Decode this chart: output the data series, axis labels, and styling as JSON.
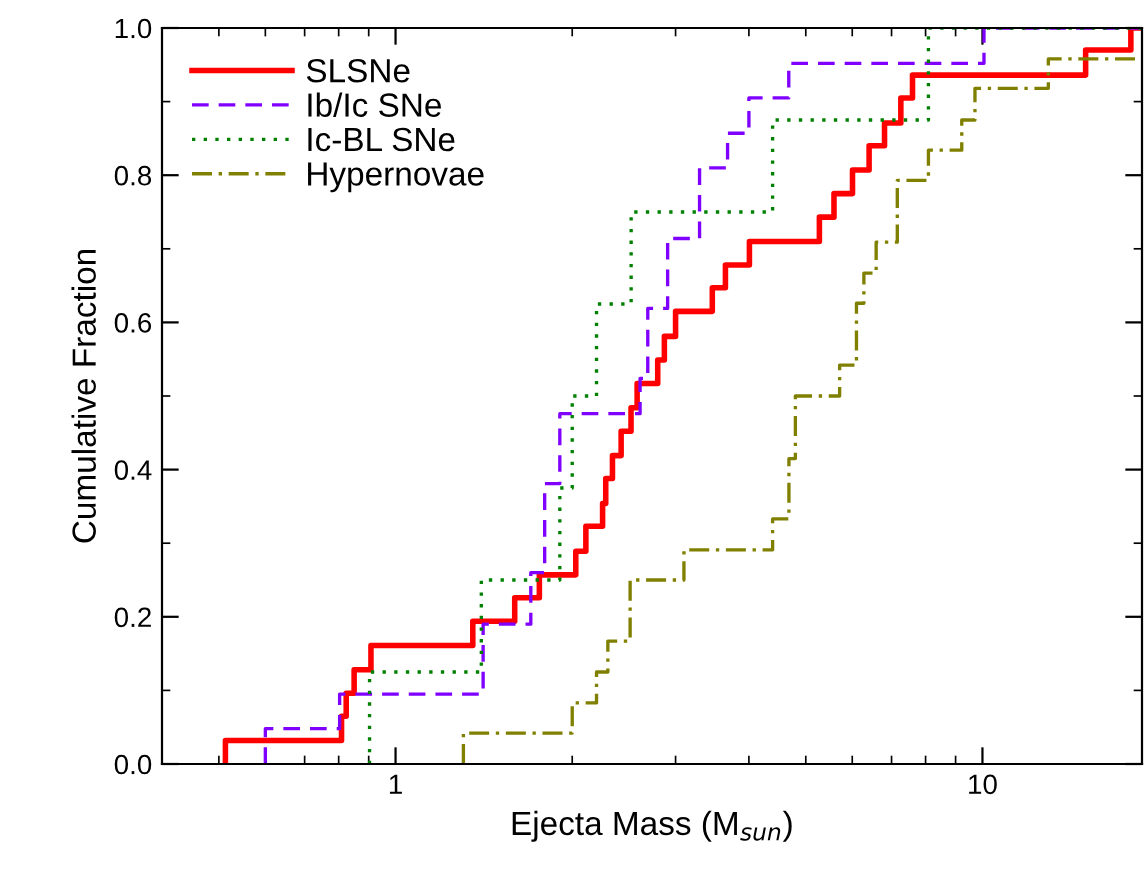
{
  "chart_data": {
    "type": "step",
    "xlabel": "Ejecta Mass (M$_{sun}$)",
    "ylabel": "Cumulative Fraction",
    "log": "x",
    "xlim": [
      0.4,
      18.7
    ],
    "xticks": [
      1,
      10
    ],
    "ylim": [
      0,
      1
    ],
    "yticks": [
      {
        "value": 0,
        "label": "0.0"
      },
      0.2,
      0.4,
      0.6,
      0.8,
      {
        "value": 1,
        "label": "1.0"
      }
    ],
    "legend": "top left",
    "grid": false,
    "series": [
      {
        "name": "SLSNe",
        "color": "#ff0000",
        "line_style": "solid",
        "x": [
          0.513,
          0.513,
          0.809,
          0.824,
          0.85,
          0.908,
          1.354,
          1.596,
          1.758,
          2.028,
          2.11,
          2.253,
          2.281,
          2.342,
          2.423,
          2.519,
          2.58,
          2.797,
          2.871,
          3.0,
          3.465,
          3.648,
          4.008,
          5.274,
          5.585,
          6.006,
          6.41,
          6.81,
          7.26,
          7.6,
          14.99,
          17.9,
          18.7
        ],
        "values": [
          0,
          0.032,
          0.065,
          0.096,
          0.128,
          0.161,
          0.194,
          0.226,
          0.257,
          0.289,
          0.323,
          0.354,
          0.388,
          0.419,
          0.452,
          0.484,
          0.517,
          0.549,
          0.581,
          0.615,
          0.647,
          0.678,
          0.71,
          0.743,
          0.775,
          0.807,
          0.84,
          0.871,
          0.905,
          0.936,
          0.97,
          1.0,
          1.0
        ]
      },
      {
        "name": "Ib/Ic SNe",
        "color": "#8000ff",
        "line_style": "dashed",
        "x": [
          0.6,
          0.6,
          0.803,
          1.41,
          1.7,
          1.795,
          1.905,
          2.61,
          2.69,
          2.908,
          3.296,
          3.679,
          4.0,
          4.677,
          10.06,
          18.7
        ],
        "values": [
          0,
          0.048,
          0.095,
          0.19,
          0.26,
          0.381,
          0.476,
          0.524,
          0.619,
          0.714,
          0.81,
          0.857,
          0.905,
          0.952,
          1.0,
          1.0
        ]
      },
      {
        "name": "Ic-BL SNe",
        "color": "#008000",
        "line_style": "dotted",
        "x": [
          0.903,
          0.903,
          1.4,
          1.905,
          2.0,
          2.2,
          2.52,
          4.39,
          8.09,
          18.7
        ],
        "values": [
          0,
          0.125,
          0.25,
          0.375,
          0.5,
          0.625,
          0.75,
          0.875,
          1.0,
          1.0
        ]
      },
      {
        "name": "Hypernovae",
        "color": "#808000",
        "line_style": "dashdot",
        "x": [
          1.305,
          1.305,
          2.0,
          2.2,
          2.3,
          2.51,
          3.1,
          4.39,
          4.68,
          4.8,
          5.71,
          6.1,
          6.28,
          6.59,
          7.16,
          8.09,
          9.22,
          9.71,
          12.95,
          18.7
        ],
        "values": [
          0,
          0.042,
          0.083,
          0.125,
          0.167,
          0.25,
          0.291,
          0.333,
          0.415,
          0.5,
          0.542,
          0.626,
          0.667,
          0.709,
          0.793,
          0.834,
          0.875,
          0.918,
          0.958,
          0.958
        ]
      }
    ]
  }
}
